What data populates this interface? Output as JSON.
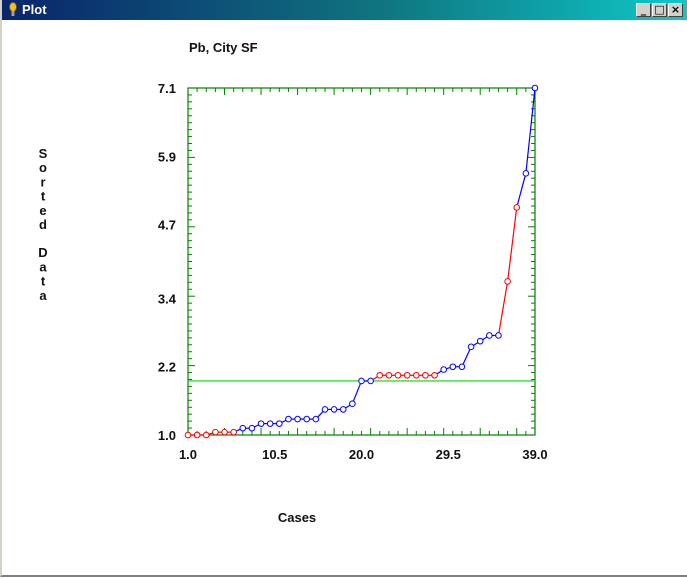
{
  "window": {
    "title": "Plot",
    "buttons": [
      "minimize",
      "maximize",
      "close"
    ]
  },
  "colors": {
    "axis": "#008000",
    "reference_line": "#33dd33",
    "series_blue": "#0000ff",
    "series_red": "#ff0000"
  },
  "chart_data": {
    "type": "line",
    "title": "Pb, City SF",
    "xlabel": "Cases",
    "ylabel": "Sorted Data",
    "x_ticks": [
      "1.0",
      "10.5",
      "20.0",
      "29.5",
      "39.0"
    ],
    "y_ticks": [
      "7.1",
      "5.9",
      "4.7",
      "3.4",
      "2.2",
      "1.0"
    ],
    "xlim": [
      1.0,
      39.0
    ],
    "ylim": [
      1.0,
      7.1
    ],
    "reference_line_y": 1.95,
    "x": [
      1,
      2,
      3,
      4,
      5,
      6,
      7,
      8,
      9,
      10,
      11,
      12,
      13,
      14,
      15,
      16,
      17,
      18,
      19,
      20,
      21,
      22,
      23,
      24,
      25,
      26,
      27,
      28,
      29,
      30,
      31,
      32,
      33,
      34,
      35,
      36,
      37,
      38,
      39
    ],
    "y": [
      1.0,
      1.0,
      1.0,
      1.05,
      1.05,
      1.05,
      1.12,
      1.12,
      1.2,
      1.2,
      1.2,
      1.28,
      1.28,
      1.28,
      1.28,
      1.45,
      1.45,
      1.45,
      1.55,
      1.95,
      1.95,
      2.05,
      2.05,
      2.05,
      2.05,
      2.05,
      2.05,
      2.05,
      2.15,
      2.2,
      2.2,
      2.55,
      2.65,
      2.75,
      2.75,
      3.7,
      5.0,
      5.6,
      7.1
    ],
    "point_series": [
      "red",
      "red",
      "red",
      "red",
      "red",
      "red",
      "blue",
      "blue",
      "blue",
      "blue",
      "blue",
      "blue",
      "blue",
      "blue",
      "blue",
      "blue",
      "blue",
      "blue",
      "blue",
      "blue",
      "blue",
      "red",
      "red",
      "red",
      "red",
      "red",
      "red",
      "red",
      "blue",
      "blue",
      "blue",
      "blue",
      "blue",
      "blue",
      "blue",
      "red",
      "red",
      "blue",
      "blue"
    ]
  }
}
